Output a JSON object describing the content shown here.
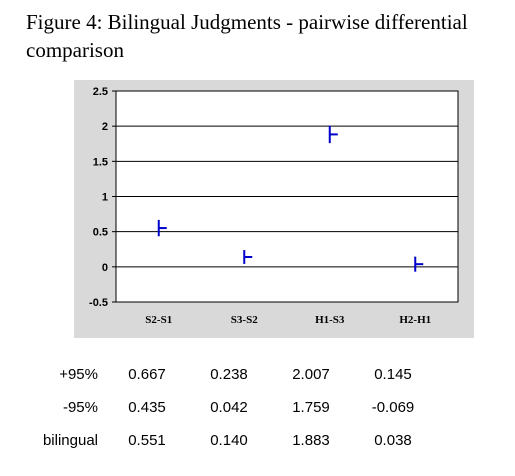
{
  "title": "Figure 4: Bilingual Judgments - pairwise differential comparison",
  "chart_data": {
    "type": "scatter",
    "title": "Figure 4: Bilingual Judgments - pairwise differential comparison",
    "categories": [
      "S2-S1",
      "S3-S2",
      "H1-S3",
      "H2-H1"
    ],
    "ylim": [
      -0.5,
      2.5
    ],
    "yticks": [
      "2.5",
      "2",
      "1.5",
      "1",
      "0.5",
      "0",
      "-0.5"
    ],
    "grid": true,
    "marker_color": "#0000cc",
    "series": [
      {
        "name": "+95%",
        "values": [
          0.667,
          0.238,
          2.007,
          0.145
        ]
      },
      {
        "name": "-95%",
        "values": [
          0.435,
          0.042,
          1.759,
          -0.069
        ]
      },
      {
        "name": "bilingual",
        "values": [
          0.551,
          0.14,
          1.883,
          0.038
        ]
      }
    ]
  },
  "table": {
    "rows": [
      {
        "label": "+95%",
        "values": [
          "0.667",
          "0.238",
          "2.007",
          "0.145"
        ]
      },
      {
        "label": "-95%",
        "values": [
          "0.435",
          "0.042",
          "1.759",
          "-0.069"
        ]
      },
      {
        "label": "bilingual",
        "values": [
          "0.551",
          "0.140",
          "1.883",
          "0.038"
        ]
      }
    ]
  }
}
